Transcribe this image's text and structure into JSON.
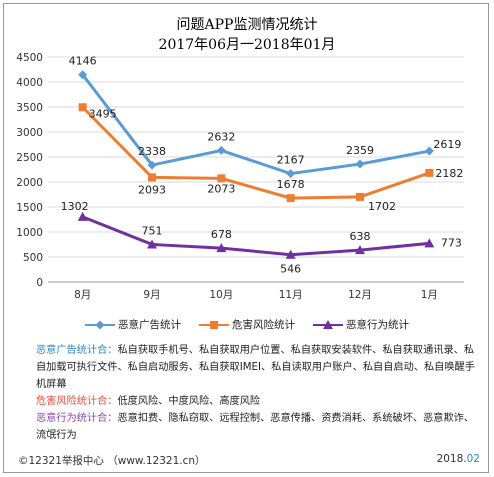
{
  "header": {
    "title_line1": "问题APP监测情况统计",
    "title_line2": "2017年06月一2018年01月"
  },
  "colors": {
    "series1": "#5b9bd5",
    "series2": "#ed7d31",
    "series3": "#7030a0",
    "grid": "#d9d9d9",
    "axis": "#999999"
  },
  "chart_data": {
    "type": "line",
    "categories": [
      "8月",
      "9月",
      "10月",
      "11月",
      "12月",
      "1月"
    ],
    "ylim": [
      0,
      4500
    ],
    "yticks": [
      0,
      500,
      1000,
      1500,
      2000,
      2500,
      3000,
      3500,
      4000,
      4500
    ],
    "grid": true,
    "legend_position": "bottom",
    "series": [
      {
        "name": "恶意广告统计",
        "values": [
          4146,
          2338,
          2632,
          2167,
          2359,
          2619
        ],
        "marker": "diamond"
      },
      {
        "name": "危害风险统计",
        "values": [
          3495,
          2093,
          2073,
          1678,
          1702,
          2182
        ],
        "marker": "square"
      },
      {
        "name": "恶意行为统计",
        "values": [
          1302,
          751,
          678,
          546,
          638,
          773
        ],
        "marker": "triangle"
      }
    ]
  },
  "notes": {
    "ad_label": "恶意广告统计合：",
    "ad_text": "私自获取手机号、私自获取用户位置、私自获取安装软件、私自获取通讯录、私自加载可执行文件、私自启动服务、私自获取IMEI、私自读取用户账户、私自自启动、私自唤醒手机屏幕",
    "risk_label": "危害风险统计合：",
    "risk_text": "低度风险、中度风险、高度风险",
    "behavior_label": "恶意行为统计合：",
    "behavior_text": "恶意扣费、隐私窃取、远程控制、恶意传播、资费消耗、系统破坏、恶意欺诈、流氓行为"
  },
  "footer": {
    "left": "©12321举报中心 （www.12321.cn）",
    "right_year": "2018.",
    "right_month": "02"
  }
}
